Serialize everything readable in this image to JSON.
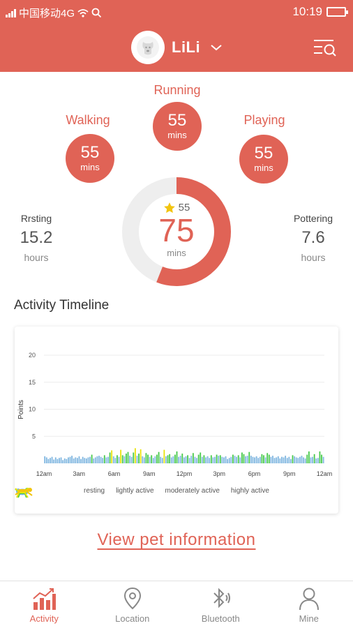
{
  "status_bar": {
    "carrier": "中国移动4G",
    "time": "10:19"
  },
  "header": {
    "pet_name": "LiLi",
    "menu_icon": "list-search-icon"
  },
  "activities": {
    "running": {
      "label": "Running",
      "value": "55",
      "unit": "mins"
    },
    "walking": {
      "label": "Walking",
      "value": "55",
      "unit": "mins"
    },
    "playing": {
      "label": "Playing",
      "value": "55",
      "unit": "mins"
    }
  },
  "summary": {
    "goal": "55",
    "total": "75",
    "unit": "mins",
    "progress_fraction": 0.56
  },
  "resting": {
    "label": "Rrsting",
    "value": "15.2",
    "unit": "hours"
  },
  "pottering": {
    "label": "Pottering",
    "value": "7.6",
    "unit": "hours"
  },
  "timeline": {
    "title": "Activity Timeline",
    "legend": [
      {
        "label": "resting",
        "color": "#7fb6e0",
        "icon": "resting-dog-icon"
      },
      {
        "label": "lightly active",
        "color": "#46c94a",
        "icon": "walking-dog-icon"
      },
      {
        "label": "moderately active",
        "color": "#e8e30a",
        "icon": "trotting-dog-icon"
      },
      {
        "label": "highly active",
        "color": "#f2c40f",
        "icon": "running-dog-icon"
      }
    ]
  },
  "chart_data": {
    "type": "bar",
    "ylabel": "Points",
    "ylim": [
      0,
      20
    ],
    "yticks": [
      5,
      10,
      15,
      20
    ],
    "xticks": [
      "12am",
      "3am",
      "6am",
      "9am",
      "12pm",
      "3pm",
      "6pm",
      "9pm",
      "12am"
    ],
    "grid": true,
    "values": [
      1.3,
      1.1,
      0.8,
      1.0,
      1.2,
      0.7,
      1.1,
      0.8,
      1.0,
      1.1,
      0.6,
      0.9,
      0.8,
      1.1,
      1.2,
      1.4,
      0.9,
      1.1,
      1.0,
      1.3,
      0.8,
      1.2,
      1.0,
      0.9,
      1.1,
      1.2,
      1.6,
      0.9,
      1.1,
      1.3,
      1.4,
      1.2,
      1.0,
      1.5,
      1.1,
      1.2,
      2.0,
      2.4,
      1.3,
      1.0,
      1.5,
      1.2,
      2.5,
      1.5,
      1.3,
      1.8,
      2.1,
      1.4,
      1.2,
      2.0,
      2.8,
      1.4,
      1.8,
      2.6,
      1.3,
      1.1,
      1.9,
      1.6,
      1.2,
      1.5,
      1.0,
      1.3,
      1.6,
      2.1,
      1.2,
      1.0,
      2.5,
      1.3,
      1.5,
      1.7,
      1.1,
      1.3,
      1.6,
      2.2,
      1.2,
      1.4,
      1.8,
      1.1,
      1.3,
      1.5,
      1.0,
      1.4,
      1.9,
      1.2,
      1.0,
      1.6,
      2.0,
      1.2,
      1.5,
      1.1,
      1.3,
      1.0,
      1.5,
      1.1,
      1.2,
      1.6,
      1.4,
      1.5,
      1.2,
      1.1,
      1.3,
      0.8,
      1.0,
      1.2,
      1.6,
      1.4,
      1.2,
      1.5,
      1.1,
      2.0,
      1.7,
      1.3,
      1.4,
      2.1,
      1.4,
      1.2,
      1.1,
      1.3,
      1.0,
      1.2,
      1.7,
      1.5,
      1.1,
      1.9,
      1.6,
      1.2,
      1.4,
      1.0,
      1.1,
      1.3,
      0.9,
      1.2,
      1.1,
      1.4,
      1.0,
      1.2,
      0.8,
      1.5,
      1.3,
      1.1,
      1.0,
      1.2,
      1.4,
      1.1,
      0.9,
      1.6,
      2.2,
      1.1,
      1.2,
      1.7,
      0.9,
      1.0,
      2.2,
      1.6,
      1.2
    ],
    "category_colors": {
      "resting": "#7fb6e0",
      "lightly": "#46c94a",
      "moderately": "#e8e30a",
      "highly": "#f2c40f"
    }
  },
  "view_link": "View pet information",
  "tabs": [
    {
      "label": "Activity",
      "icon": "activity-chart-icon"
    },
    {
      "label": "Location",
      "icon": "location-pin-icon"
    },
    {
      "label": "Bluetooth",
      "icon": "bluetooth-icon"
    },
    {
      "label": "Mine",
      "icon": "person-icon"
    }
  ],
  "colors": {
    "accent": "#e06356",
    "ring_track": "#eeeeee"
  }
}
